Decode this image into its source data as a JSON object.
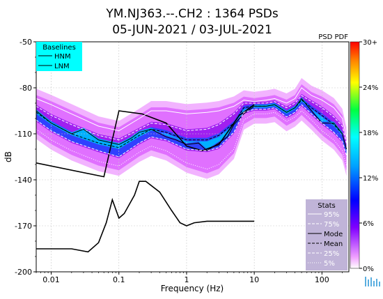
{
  "chart_data": {
    "type": "psd_pdf",
    "title_line1": "YM.NJ363.--.CH2 : 1364 PSDs",
    "title_line2": "05-JUN-2021 / 03-JUL-2021",
    "xlabel": "Frequency (Hz)",
    "ylabel": "dB",
    "x_scale": "log",
    "xlim": [
      0.006,
      250
    ],
    "ylim": [
      -200,
      -50
    ],
    "x_ticks": [
      0.01,
      0.1,
      1,
      10,
      100
    ],
    "x_tick_labels": [
      "0.01",
      "0.1",
      "1",
      "10",
      "100"
    ],
    "y_ticks": [
      -50,
      -80,
      -110,
      -140,
      -170,
      -200
    ],
    "y_tick_labels": [
      "-50",
      "-80",
      "-110",
      "-140",
      "-170",
      "-200"
    ],
    "grid": true,
    "baselines_legend": {
      "title": "Baselines",
      "entries": [
        "HNM",
        "LNM"
      ],
      "background": "#00ffff",
      "placement": "top-left"
    },
    "stats_legend": {
      "title": "Stats",
      "entries": [
        "95%",
        "75%",
        "Mode",
        "Mean",
        "25%",
        "5%"
      ],
      "background": "#c0b4d8",
      "placement": "bottom-right"
    },
    "colorbar": {
      "title": "PSD PDF",
      "tick_labels": [
        "30+",
        "24%",
        "18%",
        "12%",
        "6%",
        "0%"
      ],
      "tick_values": [
        30,
        24,
        18,
        12,
        6,
        0
      ]
    },
    "series": [
      {
        "name": "HNM",
        "style": "black-line",
        "x": [
          0.006,
          0.06,
          0.1,
          0.22,
          0.5,
          1.0,
          1.7,
          3,
          6,
          10
        ],
        "y": [
          -129,
          -138,
          -95,
          -97,
          -103,
          -118,
          -121,
          -117,
          -98,
          -91
        ]
      },
      {
        "name": "LNM",
        "style": "black-line",
        "x": [
          0.006,
          0.02,
          0.035,
          0.05,
          0.065,
          0.08,
          0.1,
          0.12,
          0.17,
          0.2,
          0.25,
          0.4,
          0.6,
          0.8,
          1.0,
          1.3,
          2,
          4,
          10
        ],
        "y": [
          -185,
          -185,
          -187,
          -181,
          -168,
          -153,
          -165,
          -162,
          -150,
          -141,
          -141,
          -148,
          -160,
          -168,
          -170,
          -168,
          -167,
          -167,
          -167
        ]
      },
      {
        "name": "95%",
        "style": "white-solid",
        "x": [
          0.006,
          0.01,
          0.02,
          0.05,
          0.1,
          0.2,
          0.3,
          0.5,
          1.0,
          2,
          3,
          5,
          7,
          10,
          15,
          20,
          30,
          40,
          50,
          70,
          100,
          150,
          200,
          230
        ],
        "y": [
          -87,
          -91,
          -97,
          -105,
          -108,
          -100,
          -95,
          -95,
          -97,
          -96,
          -95,
          -92,
          -88,
          -89,
          -88,
          -87,
          -90,
          -87,
          -80,
          -85,
          -88,
          -93,
          -100,
          -112
        ]
      },
      {
        "name": "75%",
        "style": "white-dashed",
        "x": [
          0.006,
          0.01,
          0.02,
          0.05,
          0.1,
          0.2,
          0.3,
          0.5,
          1.0,
          2,
          3,
          5,
          7,
          10,
          15,
          20,
          30,
          40,
          50,
          70,
          100,
          150,
          200,
          230
        ],
        "y": [
          -92,
          -98,
          -104,
          -111,
          -114,
          -107,
          -103,
          -104,
          -108,
          -107,
          -104,
          -97,
          -90,
          -90,
          -90,
          -89,
          -93,
          -90,
          -85,
          -89,
          -93,
          -99,
          -105,
          -116
        ]
      },
      {
        "name": "Mode",
        "style": "black-solid",
        "x": [
          0.006,
          0.01,
          0.02,
          0.03,
          0.05,
          0.1,
          0.15,
          0.2,
          0.3,
          0.5,
          0.7,
          1.0,
          1.5,
          2,
          3,
          4,
          5,
          7,
          10,
          15,
          20,
          30,
          40,
          50,
          70,
          100,
          150,
          200,
          230
        ],
        "y": [
          -95,
          -103,
          -110,
          -107,
          -114,
          -117,
          -113,
          -109,
          -107,
          -112,
          -114,
          -117,
          -116,
          -121,
          -116,
          -112,
          -104,
          -97,
          -92,
          -92,
          -91,
          -96,
          -93,
          -87,
          -95,
          -103,
          -103,
          -110,
          -120
        ]
      },
      {
        "name": "Mean",
        "style": "black-dashed",
        "x": [
          0.006,
          0.01,
          0.02,
          0.05,
          0.1,
          0.2,
          0.3,
          0.5,
          1.0,
          2,
          3,
          5,
          7,
          10,
          15,
          20,
          30,
          40,
          50,
          70,
          100,
          150,
          200,
          230
        ],
        "y": [
          -96,
          -103,
          -110,
          -116,
          -119,
          -111,
          -107,
          -109,
          -114,
          -114,
          -111,
          -103,
          -93,
          -92,
          -92,
          -91,
          -96,
          -93,
          -88,
          -93,
          -98,
          -104,
          -110,
          -120
        ]
      },
      {
        "name": "25%",
        "style": "white-dashed",
        "x": [
          0.006,
          0.01,
          0.02,
          0.05,
          0.1,
          0.2,
          0.3,
          0.5,
          1.0,
          2,
          3,
          5,
          7,
          10,
          15,
          20,
          30,
          40,
          50,
          70,
          100,
          150,
          200,
          230
        ],
        "y": [
          -101,
          -108,
          -115,
          -121,
          -125,
          -116,
          -112,
          -114,
          -120,
          -121,
          -119,
          -109,
          -96,
          -94,
          -94,
          -93,
          -99,
          -96,
          -91,
          -97,
          -103,
          -109,
          -115,
          -124
        ]
      },
      {
        "name": "5%",
        "style": "white-dotted",
        "x": [
          0.006,
          0.01,
          0.02,
          0.05,
          0.1,
          0.2,
          0.3,
          0.5,
          1.0,
          2,
          3,
          5,
          7,
          10,
          15,
          20,
          30,
          40,
          50,
          70,
          100,
          150,
          200,
          230
        ],
        "y": [
          -107,
          -114,
          -121,
          -128,
          -131,
          -122,
          -118,
          -121,
          -129,
          -133,
          -130,
          -120,
          -101,
          -97,
          -97,
          -96,
          -102,
          -99,
          -95,
          -101,
          -108,
          -114,
          -121,
          -131
        ]
      }
    ]
  }
}
